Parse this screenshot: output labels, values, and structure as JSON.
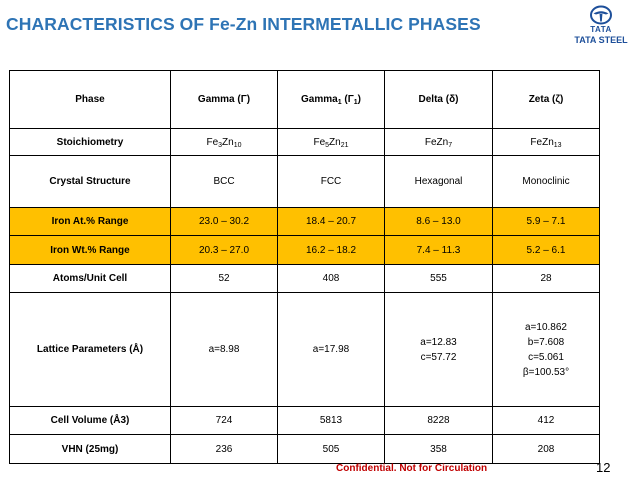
{
  "slide": {
    "title": "CHARACTERISTICS OF Fe-Zn INTERMETALLIC PHASES",
    "footer": "Confidential. Not for Circulation",
    "page_number": "12"
  },
  "logo": {
    "line1": "TATA",
    "line2": "TATA STEEL",
    "color": "#1d4f9a"
  },
  "colors": {
    "title": "#2e74b5",
    "highlight_row": "#ffc000",
    "footer": "#c00000"
  },
  "table": {
    "header": {
      "phase": "Phase",
      "gamma": "Gamma (Γ)",
      "gamma1_base": "Gamma",
      "gamma1_sub": "1",
      "gamma1_mid": " (Γ",
      "gamma1_sub2": "1",
      "gamma1_end": ")",
      "delta": "Delta (δ)",
      "zeta": "Zeta (ζ)"
    },
    "stoichiometry": {
      "label": "Stoichiometry",
      "gamma": {
        "a": "Fe",
        "a_sub": "3",
        "b": "Zn",
        "b_sub": "10"
      },
      "gamma1": {
        "a": "Fe",
        "a_sub": "5",
        "b": "Zn",
        "b_sub": "21"
      },
      "delta": {
        "a": "FeZn",
        "a_sub": "7"
      },
      "zeta": {
        "a": "FeZn",
        "a_sub": "13"
      }
    },
    "crystal_structure": {
      "label": "Crystal Structure",
      "values": [
        "BCC",
        "FCC",
        "Hexagonal",
        "Monoclinic"
      ]
    },
    "iron_at": {
      "label": "Iron At.% Range",
      "values": [
        "23.0 – 30.2",
        "18.4 – 20.7",
        "8.6 – 13.0",
        "5.9 – 7.1"
      ]
    },
    "iron_wt": {
      "label": "Iron Wt.% Range",
      "values": [
        "20.3 – 27.0",
        "16.2 – 18.2",
        "7.4 – 11.3",
        "5.2 – 6.1"
      ]
    },
    "atoms": {
      "label": "Atoms/Unit Cell",
      "values": [
        "52",
        "408",
        "555",
        "28"
      ]
    },
    "lattice": {
      "label": "Lattice Parameters (Å)",
      "gamma": "a=8.98",
      "gamma1": "a=17.98",
      "delta": [
        "a=12.83",
        "c=57.72"
      ],
      "zeta": [
        "a=10.862",
        "b=7.608",
        "c=5.061",
        "β=100.53°"
      ]
    },
    "volume": {
      "label": "Cell Volume (Å3)",
      "values": [
        "724",
        "5813",
        "8228",
        "412"
      ]
    },
    "vhn": {
      "label": "VHN (25mg)",
      "values": [
        "236",
        "505",
        "358",
        "208"
      ]
    }
  }
}
